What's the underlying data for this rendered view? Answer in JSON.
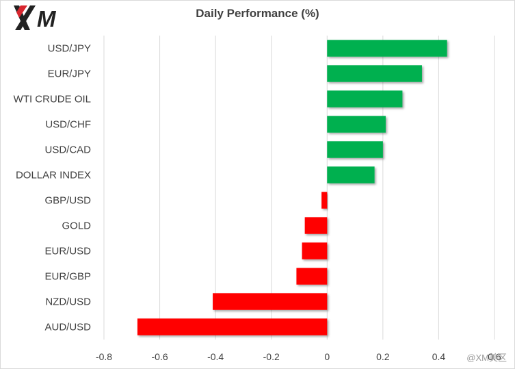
{
  "brand": {
    "logo_text": "XM",
    "watermark": "@XM美区"
  },
  "colors": {
    "positive": "#00b050",
    "negative": "#ff0000",
    "grid": "#d9d9d9",
    "text": "#404040"
  },
  "chart_data": {
    "type": "bar",
    "orientation": "horizontal",
    "title": "Daily Performance (%)",
    "categories": [
      "USD/JPY",
      "EUR/JPY",
      "WTI CRUDE OIL",
      "USD/CHF",
      "USD/CAD",
      "DOLLAR INDEX",
      "GBP/USD",
      "GOLD",
      "EUR/USD",
      "EUR/GBP",
      "NZD/USD",
      "AUD/USD"
    ],
    "values": [
      0.43,
      0.34,
      0.27,
      0.21,
      0.2,
      0.17,
      -0.02,
      -0.08,
      -0.09,
      -0.11,
      -0.41,
      -0.68
    ],
    "xlim": [
      -0.8,
      0.6
    ],
    "xticks": [
      -0.8,
      -0.6,
      -0.4,
      -0.2,
      0,
      0.2,
      0.4,
      0.6
    ],
    "xtick_labels": [
      "-0.8",
      "-0.6",
      "-0.4",
      "-0.2",
      "0",
      "0.2",
      "0.4",
      "0.6"
    ],
    "grid": "vertical"
  }
}
